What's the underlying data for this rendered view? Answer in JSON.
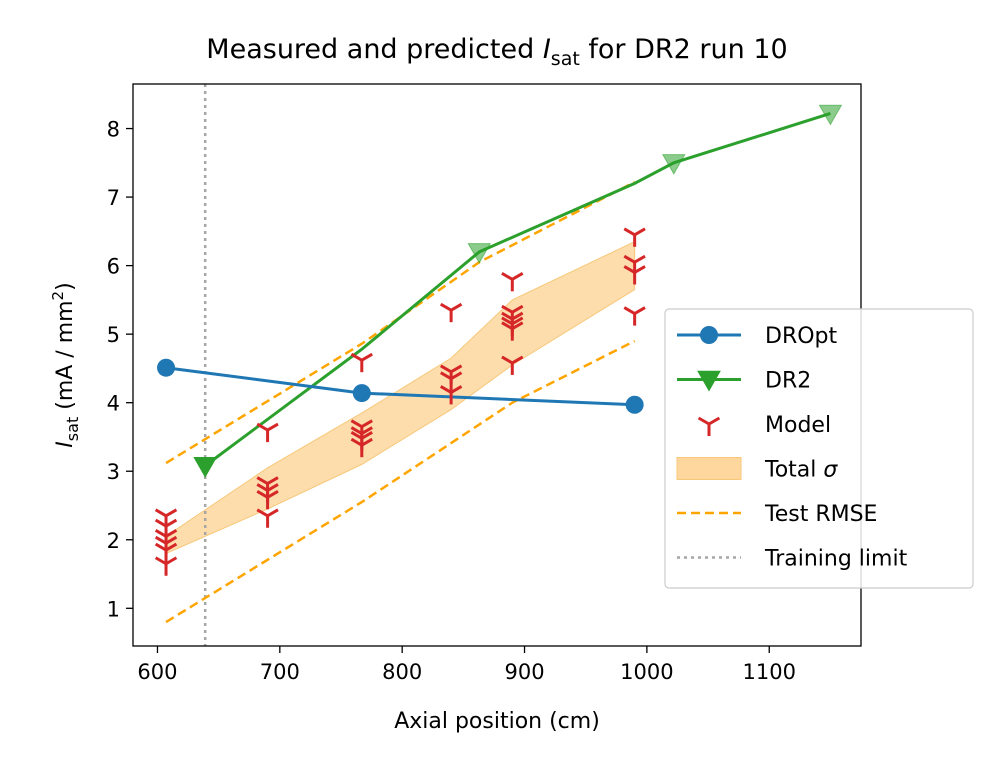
{
  "chart_data": {
    "type": "line",
    "title": "Measured and predicted",
    "title_symbol": "I",
    "title_subscript": "sat",
    "title_suffix": "for DR2 run 10",
    "xlabel": "Axial position (cm)",
    "ylabel_symbol": "I",
    "ylabel_subscript": "sat",
    "ylabel_unit": "(mA / mm",
    "ylabel_unit_sup": "2",
    "ylabel_unit_close": ")",
    "xlim": [
      580,
      1175
    ],
    "ylim": [
      0.45,
      8.65
    ],
    "xticks": [
      "600",
      "700",
      "800",
      "900",
      "1000",
      "1100"
    ],
    "yticks": [
      "1",
      "2",
      "3",
      "4",
      "5",
      "6",
      "7",
      "8"
    ],
    "legend_position": "right",
    "colors": {
      "DROpt": "#1f77b4",
      "DR2": "#2ca02c",
      "Model": "#d62728",
      "band": "#fdd79e",
      "rmse": "#ffa500",
      "limit": "#a6a6a6"
    },
    "series": [
      {
        "name": "DROpt",
        "style": "line-circle",
        "x": [
          607,
          767,
          990
        ],
        "y": [
          4.51,
          4.14,
          3.97
        ]
      },
      {
        "name": "DR2",
        "style": "line-triangle-down",
        "x": [
          639,
          767,
          863,
          990,
          1022,
          1150
        ],
        "y": [
          3.08,
          4.78,
          6.2,
          7.2,
          7.5,
          8.22
        ]
      },
      {
        "name": "Model",
        "style": "tri-down-markers",
        "points": [
          {
            "x": 607,
            "y": [
              1.65,
              1.85,
              1.95,
              2.05,
              2.2,
              2.35
            ]
          },
          {
            "x": 690,
            "y": [
              2.35,
              2.62,
              2.72,
              2.82,
              3.6
            ]
          },
          {
            "x": 767,
            "y": [
              3.38,
              3.48,
              3.55,
              3.65,
              4.62
            ]
          },
          {
            "x": 840,
            "y": [
              4.15,
              4.35,
              4.45,
              5.35
            ]
          },
          {
            "x": 890,
            "y": [
              4.58,
              5.08,
              5.15,
              5.22,
              5.32,
              5.8
            ]
          },
          {
            "x": 990,
            "y": [
              5.3,
              5.9,
              6.05,
              6.45
            ]
          }
        ]
      },
      {
        "name": "Total σ",
        "style": "band",
        "x": [
          607,
          690,
          767,
          840,
          890,
          990
        ],
        "lower": [
          1.8,
          2.45,
          3.1,
          3.9,
          4.55,
          5.65
        ],
        "upper": [
          2.05,
          3.05,
          3.85,
          4.65,
          5.5,
          6.35
        ]
      },
      {
        "name": "Test RMSE",
        "style": "dashed",
        "segments": [
          {
            "x": [
              607,
              767,
              863,
              990
            ],
            "y": [
              3.12,
              4.86,
              6.05,
              7.22
            ]
          },
          {
            "x": [
              607,
              767,
              890,
              990
            ],
            "y": [
              0.8,
              2.55,
              4.0,
              4.9
            ]
          }
        ]
      },
      {
        "name": "Training limit",
        "style": "dotted-vline",
        "x": 639
      }
    ],
    "legend": [
      "DROpt",
      "DR2",
      "Model",
      "Total σ",
      "Test RMSE",
      "Training limit"
    ]
  }
}
